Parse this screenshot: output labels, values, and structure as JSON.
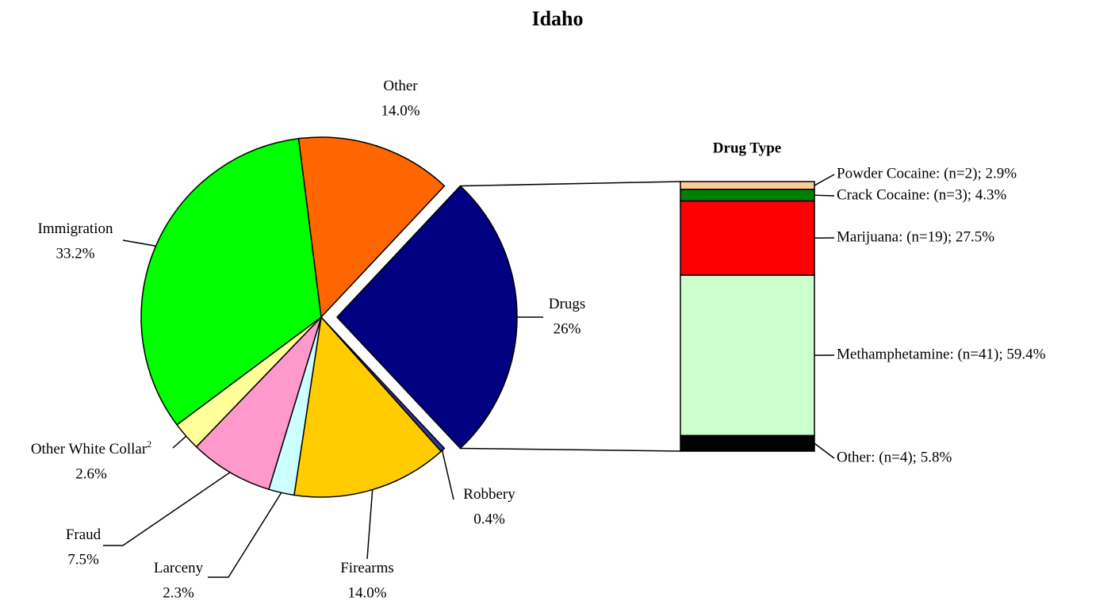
{
  "chart_data": [
    {
      "type": "pie",
      "title": "Idaho",
      "categories": [
        "Drugs",
        "Robbery",
        "Firearms",
        "Larceny",
        "Fraud",
        "Other White Collar",
        "Immigration",
        "Other"
      ],
      "category_footnotes": [
        null,
        null,
        null,
        null,
        null,
        "2",
        null,
        null
      ],
      "values": [
        26,
        0.4,
        14.0,
        2.3,
        7.5,
        2.6,
        33.2,
        14.0
      ],
      "value_labels": [
        "26%",
        "0.4%",
        "14.0%",
        "2.3%",
        "7.5%",
        "2.6%",
        "33.2%",
        "14.0%"
      ],
      "colors": [
        "#000080",
        "#333399",
        "#ffcc00",
        "#ccffff",
        "#ff99cc",
        "#ffff99",
        "#00ff00",
        "#ff6600"
      ]
    },
    {
      "type": "bar",
      "title": "Drug Type",
      "categories": [
        "Powder Cocaine: (n=2); 2.9%",
        "Crack Cocaine: (n=3); 4.3%",
        "Marijuana: (n=19); 27.5%",
        "Methamphetamine: (n=41); 59.4%",
        "Other: (n=4); 5.8%"
      ],
      "values": [
        2.9,
        4.3,
        27.5,
        59.4,
        5.8
      ],
      "colors": [
        "#ffcc99",
        "#008000",
        "#ff0000",
        "#ccffcc",
        "#000000"
      ]
    }
  ]
}
